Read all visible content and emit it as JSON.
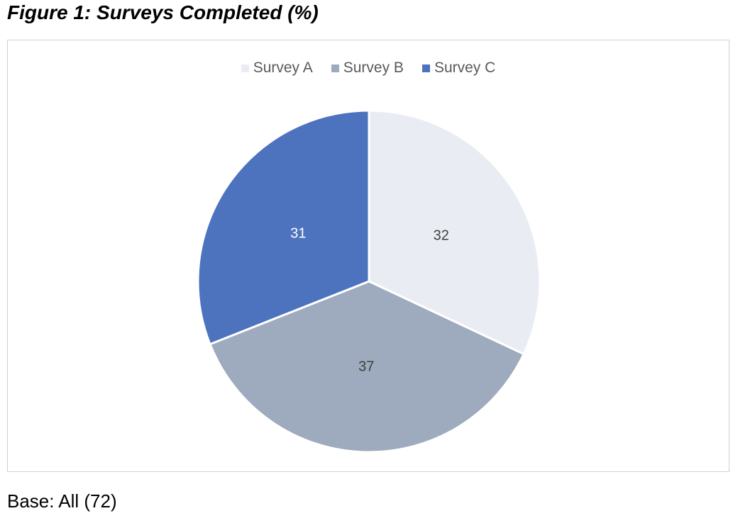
{
  "title": "Figure 1: Surveys Completed (%)",
  "footnote": "Base: All (72)",
  "chart_data": {
    "type": "pie",
    "title": "",
    "legend_position": "top",
    "slices": [
      {
        "label": "Survey A",
        "value": 32,
        "color": "#e9edf3",
        "label_color": "#404040"
      },
      {
        "label": "Survey B",
        "value": 37,
        "color": "#9eaabd",
        "label_color": "#404040"
      },
      {
        "label": "Survey C",
        "value": 31,
        "color": "#4d73be",
        "label_color": "#ffffff"
      }
    ]
  }
}
